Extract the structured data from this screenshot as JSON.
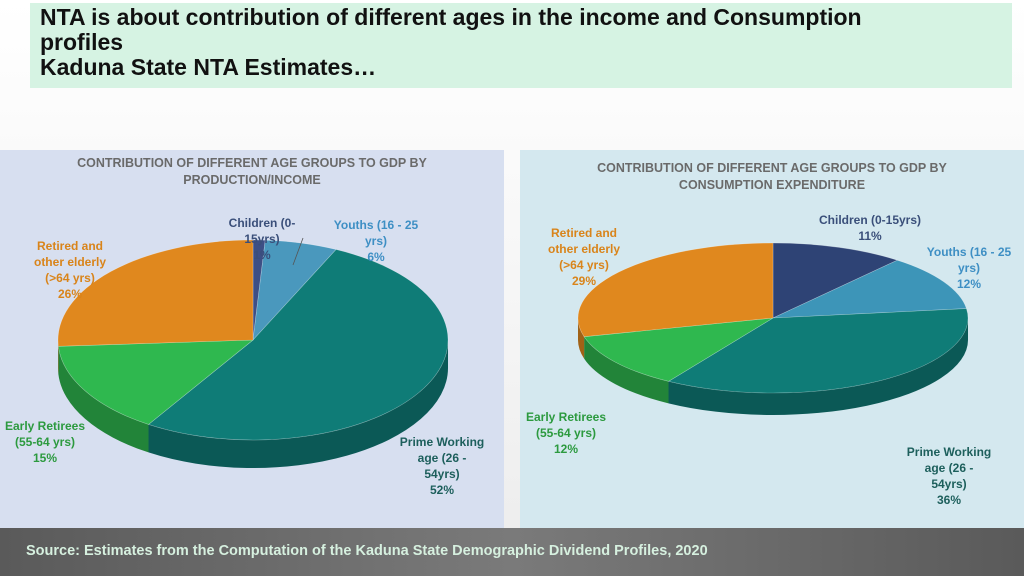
{
  "title": {
    "lines": [
      "NTA is about contribution of different ages in the income and Consumption",
      "profiles",
      "Kaduna State NTA Estimates…"
    ]
  },
  "source": "Source: Estimates from the Computation of the Kaduna State Demographic Dividend Profiles, 2020",
  "chart_data": [
    {
      "type": "pie",
      "title": [
        "CONTRIBUTION OF DIFFERENT AGE GROUPS TO GDP BY",
        "PRODUCTION/INCOME"
      ],
      "slices": [
        {
          "label_lines": [
            "Children (0-",
            "15yrs)"
          ],
          "pct_label": "1%",
          "value": 1,
          "color": "#3d4f85",
          "label_color": "#3a4f7a"
        },
        {
          "label_lines": [
            "Youths (16 - 25",
            "yrs)"
          ],
          "pct_label": "6%",
          "value": 6,
          "color": "#4a98bd",
          "label_color": "#3e8fc4"
        },
        {
          "label_lines": [
            "Prime Working",
            "age (26 -",
            "54yrs)"
          ],
          "pct_label": "52%",
          "value": 52,
          "color": "#0f7c77",
          "label_color": "#1d5f5c"
        },
        {
          "label_lines": [
            "Early Retirees",
            "(55-64 yrs)"
          ],
          "pct_label": "15%",
          "value": 15,
          "color": "#2fb84f",
          "label_color": "#2c9a3f"
        },
        {
          "label_lines": [
            "Retired and",
            "other elderly",
            "(>64 yrs)"
          ],
          "pct_label": "26%",
          "value": 26,
          "color": "#e0881e",
          "label_color": "#d9841a"
        }
      ]
    },
    {
      "type": "pie",
      "title": [
        "CONTRIBUTION OF DIFFERENT AGE GROUPS TO GDP BY",
        "CONSUMPTION EXPENDITURE"
      ],
      "slices": [
        {
          "label_lines": [
            "Children (0-15yrs)"
          ],
          "pct_label": "11%",
          "value": 11,
          "color": "#2e4375",
          "label_color": "#3a4f7a"
        },
        {
          "label_lines": [
            "Youths (16 - 25",
            "yrs)"
          ],
          "pct_label": "12%",
          "value": 12,
          "color": "#3d95b8",
          "label_color": "#3e8fc4"
        },
        {
          "label_lines": [
            "Prime Working",
            "age (26 -",
            "54yrs)"
          ],
          "pct_label": "36%",
          "value": 36,
          "color": "#0f7c77",
          "label_color": "#1d5f5c"
        },
        {
          "label_lines": [
            "Early Retirees",
            "(55-64 yrs)"
          ],
          "pct_label": "12%",
          "value": 12,
          "color": "#2fb84f",
          "label_color": "#2c9a3f"
        },
        {
          "label_lines": [
            "Retired and",
            "other elderly",
            "(>64 yrs)"
          ],
          "pct_label": "29%",
          "value": 29,
          "color": "#e0881e",
          "label_color": "#d9841a"
        }
      ]
    }
  ]
}
